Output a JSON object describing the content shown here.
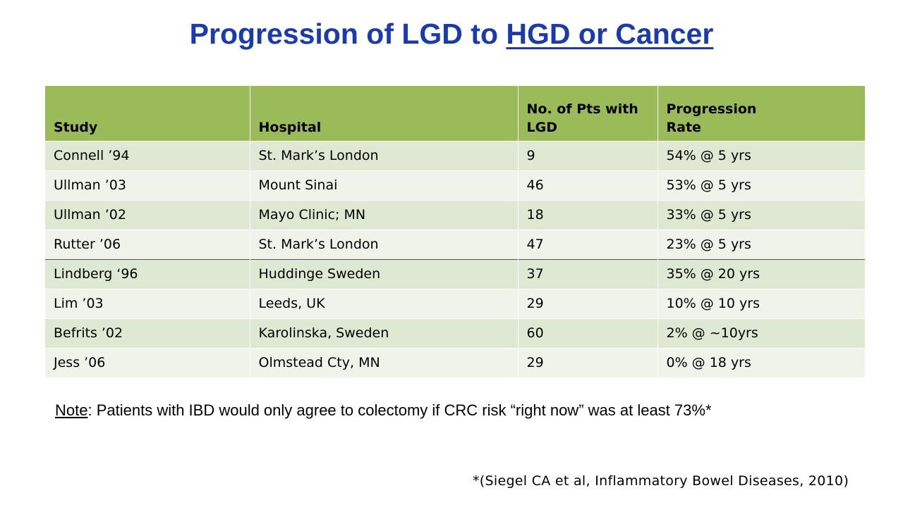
{
  "title": {
    "prefix": "Progression of LGD to ",
    "underlined": "HGD or Cancer"
  },
  "table": {
    "headers": [
      "Study",
      "Hospital",
      "No. of Pts with\nLGD",
      "Progression\nRate"
    ],
    "rows": [
      [
        "Connell ’94",
        "St. Mark’s London",
        "9",
        "54% @ 5 yrs"
      ],
      [
        "Ullman ’03",
        "Mount Sinai",
        "46",
        "53% @ 5 yrs"
      ],
      [
        "Ullman ’02",
        "Mayo Clinic; MN",
        "18",
        "33% @ 5 yrs"
      ],
      [
        "Rutter ’06",
        "St. Mark’s London",
        "47",
        "23% @ 5 yrs"
      ],
      [
        "Lindberg ‘96",
        "Huddinge Sweden",
        "37",
        "35% @ 20 yrs"
      ],
      [
        "Lim ’03",
        "Leeds, UK",
        "29",
        "10% @ 10 yrs"
      ],
      [
        "Befrits ’02",
        "Karolinska, Sweden",
        "60",
        "2% @ ~10yrs"
      ],
      [
        "Jess ’06",
        "Olmstead Cty, MN",
        "29",
        "0% @ 18 yrs"
      ]
    ],
    "header_color": "#9bbb59",
    "row_color_dark": "#dfe8d2",
    "row_color_light": "#eff3ea"
  },
  "note": {
    "label": "Note",
    "text": ": Patients with IBD would only agree to colectomy if CRC risk “right now” was at least 73%*"
  },
  "citation": "*(Siegel CA et al, Inflammatory Bowel Diseases, 2010)",
  "colors": {
    "title": "#1a3bb0"
  }
}
